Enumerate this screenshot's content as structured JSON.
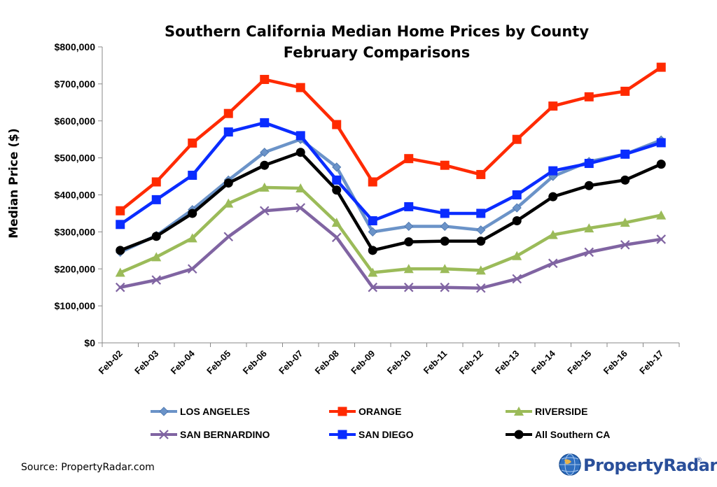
{
  "chart_data": {
    "type": "line",
    "title": "Southern California Median Home Prices by County",
    "subtitle": "February Comparisons",
    "xlabel": "",
    "ylabel": "Median Price ($)",
    "ylim": [
      0,
      800000
    ],
    "yticks": [
      0,
      100000,
      200000,
      300000,
      400000,
      500000,
      600000,
      700000,
      800000
    ],
    "ytick_labels": [
      "$0",
      "$100,000",
      "$200,000",
      "$300,000",
      "$400,000",
      "$500,000",
      "$600,000",
      "$700,000",
      "$800,000"
    ],
    "categories": [
      "Feb-02",
      "Feb-03",
      "Feb-04",
      "Feb-05",
      "Feb-06",
      "Feb-07",
      "Feb-08",
      "Feb-09",
      "Feb-10",
      "Feb-11",
      "Feb-12",
      "Feb-13",
      "Feb-14",
      "Feb-15",
      "Feb-16",
      "Feb-17"
    ],
    "grid": false,
    "legend_position": "bottom",
    "series": [
      {
        "name": "LOS ANGELES",
        "color": "#6b93c8",
        "marker": "diamond",
        "values": [
          245000,
          290000,
          360000,
          440000,
          515000,
          550000,
          475000,
          300000,
          315000,
          315000,
          305000,
          365000,
          450000,
          490000,
          510000,
          548000
        ]
      },
      {
        "name": "ORANGE",
        "color": "#ff2a00",
        "marker": "square",
        "values": [
          357000,
          435000,
          540000,
          620000,
          712000,
          690000,
          590000,
          435000,
          498000,
          480000,
          455000,
          550000,
          640000,
          665000,
          680000,
          745000
        ]
      },
      {
        "name": "RIVERSIDE",
        "color": "#9bbb59",
        "marker": "triangle",
        "values": [
          190000,
          232000,
          283000,
          377000,
          420000,
          418000,
          325000,
          190000,
          200000,
          200000,
          196000,
          235000,
          292000,
          310000,
          325000,
          345000
        ]
      },
      {
        "name": "SAN BERNARDINO",
        "color": "#8064a2",
        "marker": "x",
        "values": [
          150000,
          170000,
          200000,
          287000,
          357000,
          365000,
          285000,
          150000,
          150000,
          150000,
          148000,
          173000,
          215000,
          245000,
          265000,
          280000
        ]
      },
      {
        "name": "SAN DIEGO",
        "color": "#0a2cff",
        "marker": "square",
        "values": [
          320000,
          387000,
          453000,
          570000,
          595000,
          560000,
          440000,
          330000,
          368000,
          350000,
          350000,
          400000,
          465000,
          485000,
          510000,
          541000
        ]
      },
      {
        "name": "All Southern CA",
        "color": "#000000",
        "marker": "circle",
        "values": [
          250000,
          288000,
          350000,
          432000,
          480000,
          515000,
          413000,
          250000,
          273000,
          275000,
          275000,
          330000,
          395000,
          425000,
          440000,
          483000
        ]
      }
    ]
  },
  "footer": {
    "source": "Source: PropertyRadar.com",
    "logo_text": "PropertyRadar",
    "logo_mark": "®"
  }
}
